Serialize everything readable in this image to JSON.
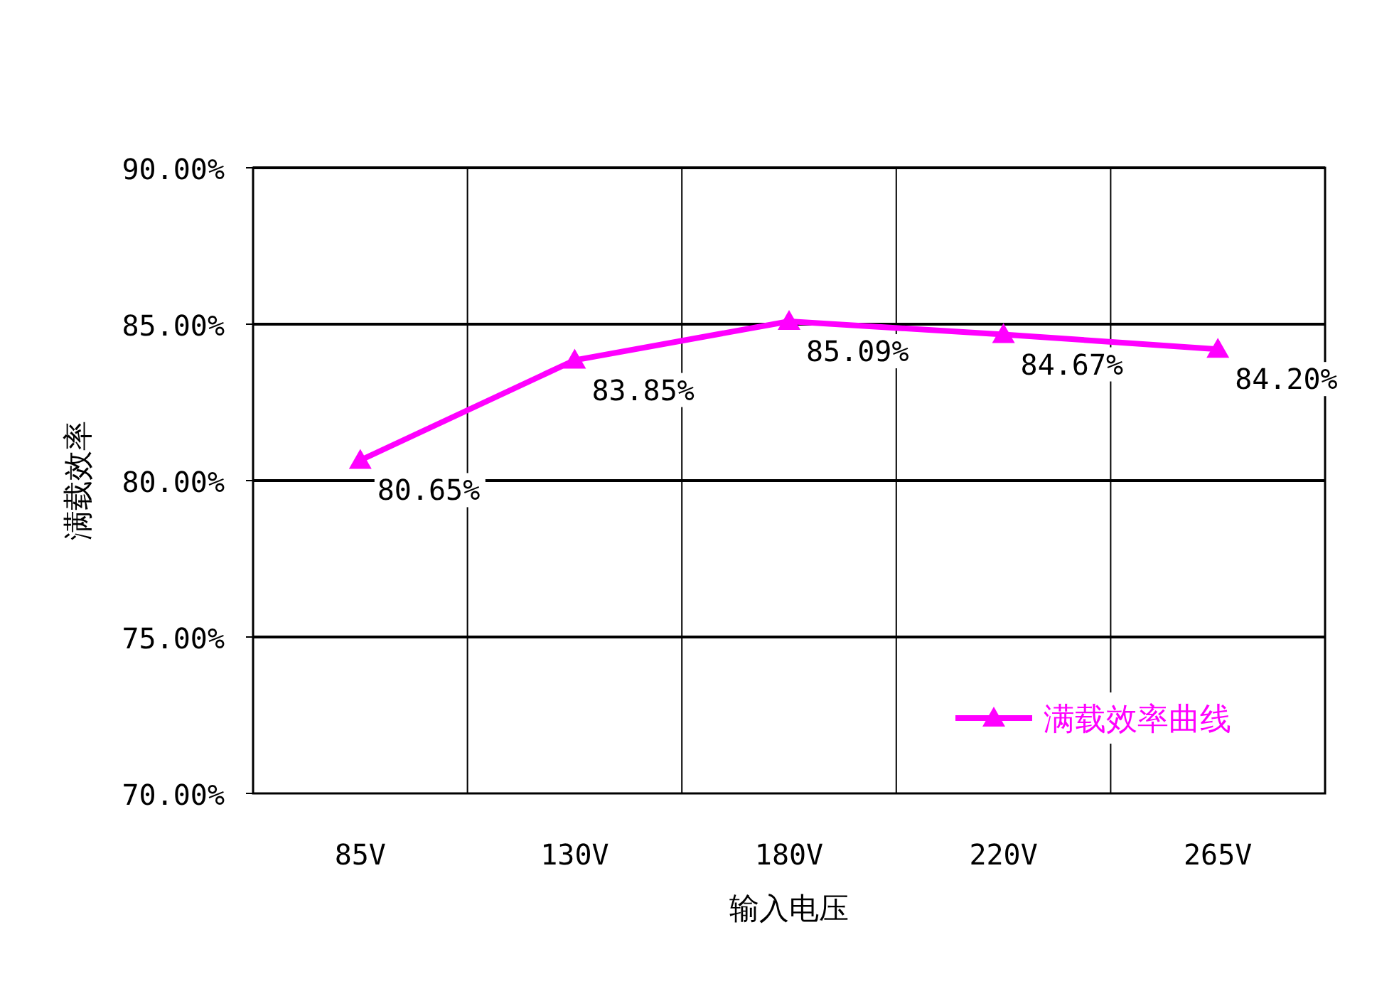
{
  "chart_data": {
    "type": "line",
    "xlabel": "输入电压",
    "ylabel": "满载效率",
    "categories": [
      "85V",
      "130V",
      "180V",
      "220V",
      "265V"
    ],
    "series": [
      {
        "name": "满载效率曲线",
        "color": "#ff00ff",
        "values": [
          80.65,
          83.85,
          85.09,
          84.67,
          84.2
        ],
        "value_labels": [
          "80.65%",
          "83.85%",
          "85.09%",
          "84.67%",
          "84.20%"
        ]
      }
    ],
    "ylim": [
      70,
      90
    ],
    "yticks": [
      {
        "value": 70,
        "label": "70.00%"
      },
      {
        "value": 75,
        "label": "75.00%"
      },
      {
        "value": 80,
        "label": "80.00%"
      },
      {
        "value": 85,
        "label": "85.00%"
      },
      {
        "value": 90,
        "label": "90.00%"
      }
    ],
    "grid": true,
    "legend": "bottom right",
    "marker": "triangle",
    "line_style": "solid"
  }
}
